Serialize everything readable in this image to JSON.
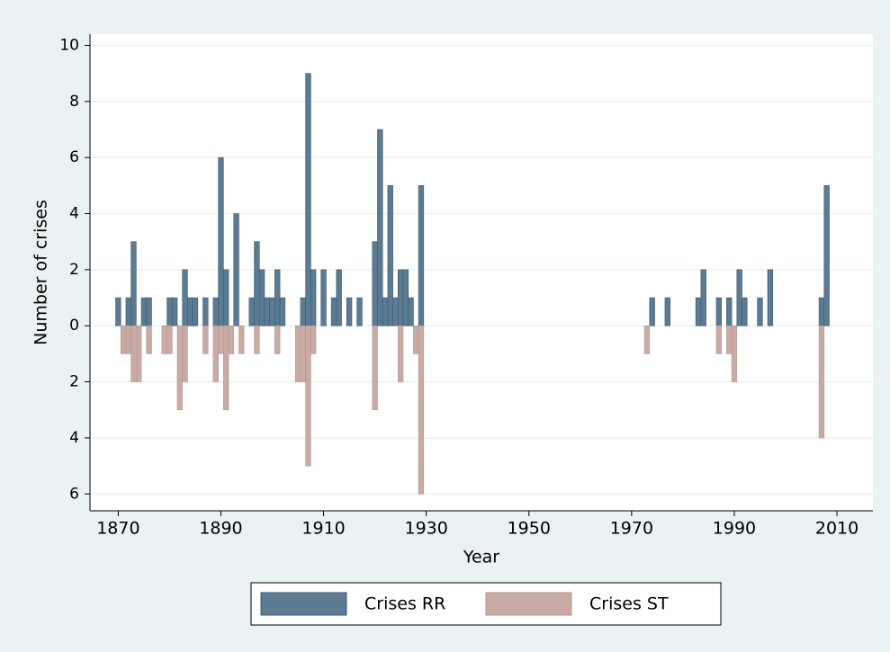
{
  "chart_data": {
    "type": "bar",
    "xlabel": "Year",
    "ylabel": "Number of crises",
    "xlim": [
      1864.5,
      2017
    ],
    "xticks": [
      1870,
      1890,
      1910,
      1930,
      1950,
      1970,
      1990,
      2010
    ],
    "ylim": [
      -6.6,
      10.4
    ],
    "yticks": [
      {
        "value": -6,
        "label": "6"
      },
      {
        "value": -4,
        "label": "4"
      },
      {
        "value": -2,
        "label": "2"
      },
      0,
      2,
      4,
      6,
      8,
      10
    ],
    "grid": true,
    "legend": "bottom",
    "series": [
      {
        "name": "Crises RR",
        "color": "#5b7b93",
        "x": [
          1870,
          1872,
          1873,
          1875,
          1876,
          1880,
          1881,
          1883,
          1884,
          1885,
          1887,
          1889,
          1890,
          1891,
          1893,
          1896,
          1897,
          1898,
          1899,
          1900,
          1901,
          1902,
          1906,
          1907,
          1908,
          1910,
          1912,
          1913,
          1915,
          1917,
          1920,
          1921,
          1922,
          1923,
          1924,
          1925,
          1926,
          1927,
          1929,
          1974,
          1977,
          1983,
          1984,
          1987,
          1989,
          1991,
          1992,
          1995,
          1997,
          2007,
          2008
        ],
        "values": [
          1,
          1,
          3,
          1,
          1,
          1,
          1,
          2,
          1,
          1,
          1,
          1,
          6,
          2,
          4,
          1,
          3,
          2,
          1,
          1,
          2,
          1,
          1,
          9,
          2,
          2,
          1,
          2,
          1,
          1,
          3,
          7,
          1,
          5,
          1,
          2,
          2,
          1,
          5,
          1,
          1,
          1,
          2,
          1,
          1,
          2,
          1,
          1,
          2,
          1,
          5
        ]
      },
      {
        "name": "Crises ST",
        "color": "#c9aba6",
        "x": [
          1871,
          1872,
          1873,
          1874,
          1876,
          1879,
          1880,
          1882,
          1883,
          1887,
          1889,
          1890,
          1891,
          1892,
          1894,
          1897,
          1901,
          1905,
          1906,
          1907,
          1908,
          1920,
          1925,
          1928,
          1929,
          1973,
          1987,
          1989,
          1990,
          2007
        ],
        "values": [
          -1,
          -1,
          -2,
          -2,
          -1,
          -1,
          -1,
          -3,
          -2,
          -1,
          -2,
          -1,
          -3,
          -1,
          -1,
          -1,
          -1,
          -2,
          -2,
          -5,
          -1,
          -3,
          -2,
          -1,
          -6,
          -1,
          -1,
          -1,
          -2,
          -4
        ]
      }
    ]
  }
}
